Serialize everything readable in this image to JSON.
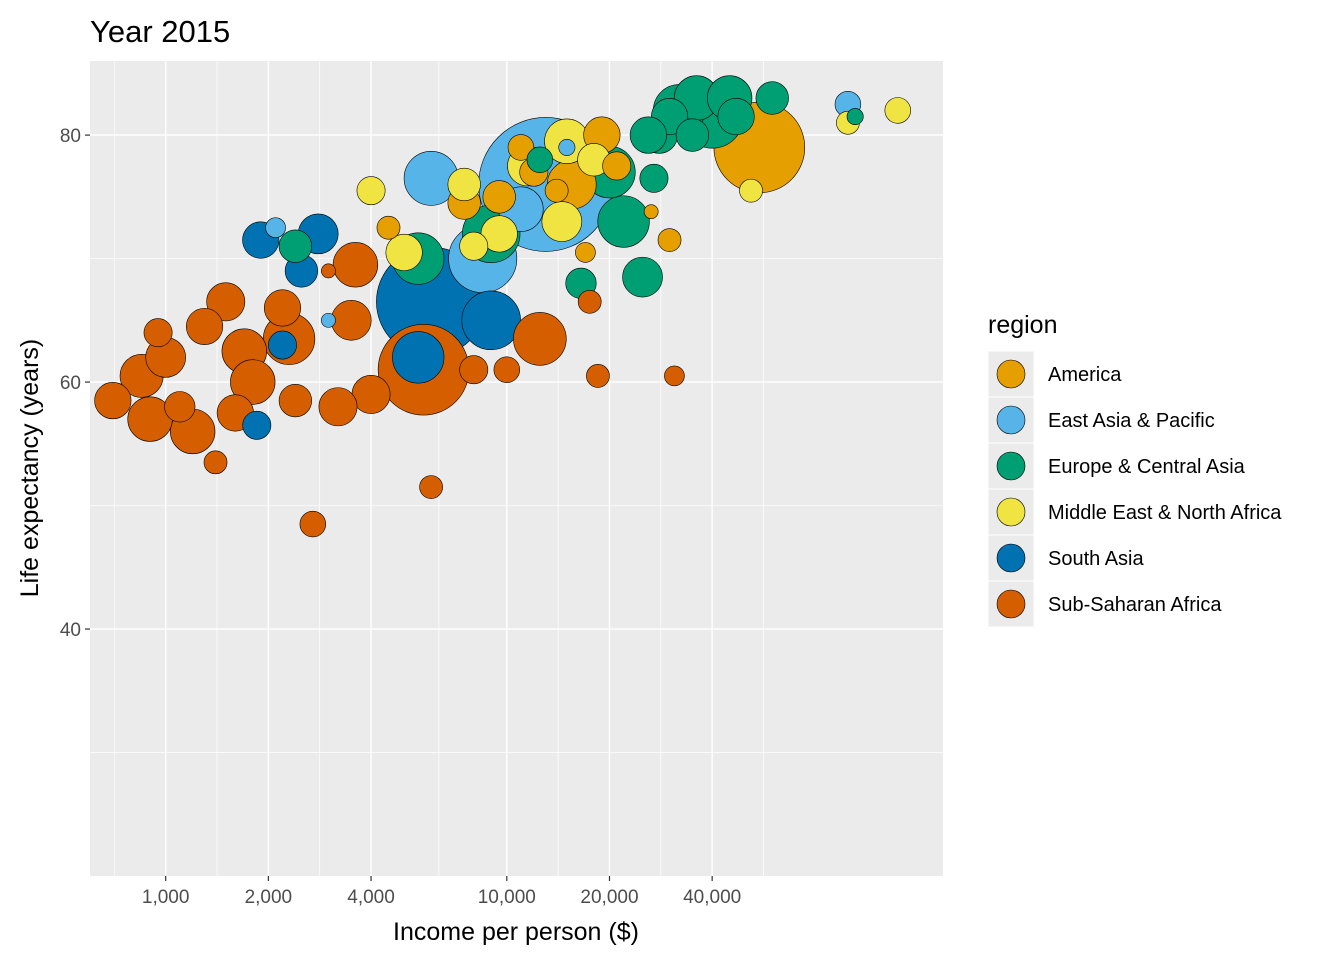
{
  "chart_data": {
    "type": "scatter",
    "title": "Year 2015",
    "xlabel": "Income per person ($)",
    "ylabel": "Life expectancy (years)",
    "x_scale": "log",
    "xlim": [
      600,
      190000
    ],
    "ylim": [
      20,
      86
    ],
    "x_ticks": [
      1000,
      2000,
      4000,
      10000,
      20000,
      40000
    ],
    "x_tick_labels": [
      "1,000",
      "2,000",
      "4,000",
      "10,000",
      "20,000",
      "40,000"
    ],
    "y_ticks": [
      40,
      60,
      80
    ],
    "y_tick_labels": [
      "40",
      "60",
      "80"
    ],
    "grid": true,
    "legend": {
      "title": "region",
      "position": "right",
      "entries": [
        {
          "name": "America",
          "color": "#E69F00"
        },
        {
          "name": "East Asia & Pacific",
          "color": "#56B4E9"
        },
        {
          "name": "Europe & Central Asia",
          "color": "#009E73"
        },
        {
          "name": "Middle East & North Africa",
          "color": "#F0E442"
        },
        {
          "name": "South Asia",
          "color": "#0072B2"
        },
        {
          "name": "Sub-Saharan Africa",
          "color": "#D55E00"
        }
      ]
    },
    "series": [
      {
        "name": "South Asia",
        "points": [
          [
            6000,
            66.5,
            900
          ],
          [
            1850,
            56.5,
            60
          ],
          [
            1900,
            71.5,
            100
          ],
          [
            2800,
            72,
            120
          ],
          [
            2500,
            69,
            80
          ],
          [
            9000,
            65,
            260
          ],
          [
            5500,
            62,
            200
          ],
          [
            2200,
            63,
            60
          ]
        ]
      },
      {
        "name": "East Asia & Pacific",
        "points": [
          [
            13000,
            76,
            1350
          ],
          [
            6000,
            76.5,
            220
          ],
          [
            8500,
            70,
            350
          ],
          [
            2100,
            72.5,
            30
          ],
          [
            3000,
            65,
            15
          ],
          [
            100000,
            82.5,
            50
          ],
          [
            15000,
            79,
            20
          ],
          [
            11000,
            74,
            150
          ]
        ]
      },
      {
        "name": "Sub-Saharan Africa",
        "points": [
          [
            5700,
            61,
            620
          ],
          [
            12500,
            63.5,
            210
          ],
          [
            4000,
            59,
            110
          ],
          [
            2300,
            63.5,
            200
          ],
          [
            1700,
            62.5,
            150
          ],
          [
            1000,
            62,
            120
          ],
          [
            1200,
            56,
            150
          ],
          [
            700,
            58.5,
            100
          ],
          [
            900,
            57,
            150
          ],
          [
            850,
            60.5,
            140
          ],
          [
            1800,
            60,
            150
          ],
          [
            1500,
            66.5,
            110
          ],
          [
            2200,
            66,
            100
          ],
          [
            3500,
            65,
            120
          ],
          [
            1300,
            64.5,
            100
          ],
          [
            2400,
            58.5,
            80
          ],
          [
            3200,
            58,
            110
          ],
          [
            1400,
            53.5,
            40
          ],
          [
            2700,
            48.5,
            50
          ],
          [
            6000,
            51.5,
            40
          ],
          [
            18500,
            60.5,
            40
          ],
          [
            31000,
            60.5,
            30
          ],
          [
            17500,
            66.5,
            40
          ],
          [
            3600,
            69.5,
            150
          ],
          [
            10000,
            61,
            50
          ],
          [
            8000,
            61,
            60
          ],
          [
            1600,
            57.5,
            100
          ],
          [
            3000,
            69,
            15
          ],
          [
            950,
            64,
            60
          ],
          [
            1100,
            58,
            70
          ]
        ]
      },
      {
        "name": "America",
        "points": [
          [
            55000,
            79,
            620
          ],
          [
            15500,
            76,
            180
          ],
          [
            21000,
            77.5,
            60
          ],
          [
            30000,
            71.5,
            40
          ],
          [
            17000,
            70.5,
            30
          ],
          [
            26500,
            73.8,
            10
          ],
          [
            4500,
            72.5,
            40
          ],
          [
            7500,
            74.5,
            80
          ],
          [
            12000,
            77,
            60
          ],
          [
            9500,
            75,
            80
          ],
          [
            11000,
            79,
            50
          ],
          [
            19000,
            80,
            100
          ],
          [
            14000,
            75.5,
            40
          ]
        ]
      },
      {
        "name": "Europe & Central Asia",
        "points": [
          [
            40000,
            81.5,
            300
          ],
          [
            32000,
            82,
            200
          ],
          [
            28000,
            80,
            100
          ],
          [
            22000,
            73,
            200
          ],
          [
            25000,
            68.5,
            120
          ],
          [
            20000,
            77,
            200
          ],
          [
            16500,
            68,
            70
          ],
          [
            27000,
            76.5,
            60
          ],
          [
            36000,
            83,
            150
          ],
          [
            47000,
            81.5,
            100
          ],
          [
            45000,
            83,
            150
          ],
          [
            30000,
            81.5,
            100
          ],
          [
            5500,
            70,
            200
          ],
          [
            2400,
            71,
            80
          ],
          [
            9000,
            72,
            250
          ],
          [
            12500,
            78,
            50
          ],
          [
            35000,
            80,
            80
          ],
          [
            26000,
            80,
            100
          ],
          [
            60000,
            83,
            80
          ],
          [
            105000,
            81.5,
            20
          ]
        ]
      },
      {
        "name": "Middle East & North Africa",
        "points": [
          [
            15000,
            79.5,
            150
          ],
          [
            14500,
            73,
            120
          ],
          [
            11500,
            77.5,
            120
          ],
          [
            4000,
            75.5,
            60
          ],
          [
            5000,
            70.5,
            100
          ],
          [
            7500,
            76,
            80
          ],
          [
            9500,
            72,
            100
          ],
          [
            140000,
            82,
            50
          ],
          [
            100000,
            81,
            40
          ],
          [
            52000,
            75.5,
            40
          ],
          [
            18000,
            78,
            80
          ],
          [
            8000,
            71,
            60
          ]
        ]
      }
    ]
  }
}
